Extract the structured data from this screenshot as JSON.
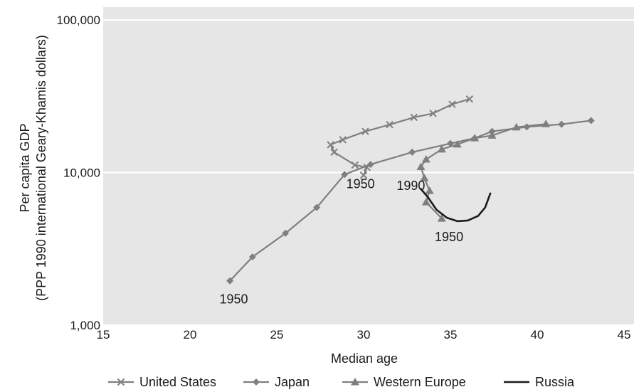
{
  "chart_data": {
    "type": "line",
    "xlabel": "Median age",
    "ylabel_lines": [
      "Per capita GDP",
      "(PPP 1990 international Geary-Khamis dollars)"
    ],
    "xlim": [
      15,
      45
    ],
    "ylim": [
      1000,
      100000
    ],
    "y_scale": "log",
    "x_ticks": [
      15,
      20,
      25,
      30,
      35,
      40,
      45
    ],
    "x_tick_labels": [
      "15",
      "20",
      "25",
      "30",
      "35",
      "40",
      "45"
    ],
    "y_ticks": [
      1000,
      10000,
      100000
    ],
    "y_tick_labels": [
      "1,000",
      "10,000",
      "100,000"
    ],
    "grid": "horizontal",
    "legend_position": "bottom",
    "series": [
      {
        "name": "United States",
        "marker": "x",
        "color": "#7f7f7f",
        "points": [
          [
            30.0,
            9600
          ],
          [
            30.2,
            10800
          ],
          [
            29.5,
            11200
          ],
          [
            28.3,
            13600
          ],
          [
            28.1,
            15200
          ],
          [
            28.8,
            16400
          ],
          [
            30.1,
            18600
          ],
          [
            31.5,
            20600
          ],
          [
            32.9,
            23000
          ],
          [
            34.0,
            24400
          ],
          [
            35.1,
            28000
          ],
          [
            36.1,
            30300
          ]
        ]
      },
      {
        "name": "Japan",
        "marker": "diamond",
        "color": "#7f7f7f",
        "points": [
          [
            22.3,
            1950
          ],
          [
            23.6,
            2800
          ],
          [
            25.5,
            4000
          ],
          [
            27.3,
            5900
          ],
          [
            28.9,
            9700
          ],
          [
            30.4,
            11300
          ],
          [
            32.8,
            13600
          ],
          [
            35.0,
            15500
          ],
          [
            36.4,
            16800
          ],
          [
            37.4,
            18600
          ],
          [
            39.4,
            19900
          ],
          [
            41.4,
            20700
          ],
          [
            43.1,
            21900
          ]
        ]
      },
      {
        "name": "Western Europe",
        "marker": "triangle",
        "color": "#7f7f7f",
        "points": [
          [
            34.5,
            5000
          ],
          [
            33.6,
            6400
          ],
          [
            33.8,
            7600
          ],
          [
            33.5,
            9200
          ],
          [
            33.3,
            10900
          ],
          [
            33.6,
            12200
          ],
          [
            34.5,
            14200
          ],
          [
            35.4,
            15300
          ],
          [
            36.4,
            16800
          ],
          [
            37.4,
            17500
          ],
          [
            38.8,
            19800
          ],
          [
            40.5,
            20800
          ]
        ]
      },
      {
        "name": "Russia",
        "marker": "none",
        "color": "#1a1a1a",
        "points": [
          [
            33.3,
            7800
          ],
          [
            33.7,
            6900
          ],
          [
            34.2,
            5700
          ],
          [
            34.8,
            5050
          ],
          [
            35.4,
            4800
          ],
          [
            36.0,
            4850
          ],
          [
            36.6,
            5200
          ],
          [
            37.0,
            5900
          ],
          [
            37.3,
            7300
          ]
        ]
      }
    ],
    "annotations": [
      {
        "text": "1950",
        "x": 21.7,
        "y": 1390
      },
      {
        "text": "1950",
        "x": 29.0,
        "y": 7900
      },
      {
        "text": "1990",
        "x": 31.9,
        "y": 7700
      },
      {
        "text": "1950",
        "x": 34.1,
        "y": 3550
      }
    ]
  }
}
